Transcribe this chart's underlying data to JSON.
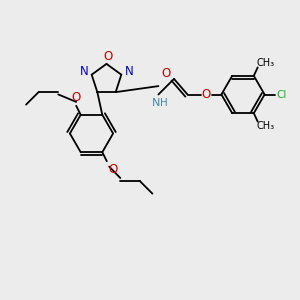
{
  "bg_color": "#ececec",
  "atom_colors": {
    "C": "#000000",
    "N": "#0000cc",
    "O": "#cc0000",
    "Cl": "#22aa22",
    "H": "#4488aa",
    "NH": "#4488aa"
  },
  "bond_color": "#000000",
  "lw": 1.3
}
